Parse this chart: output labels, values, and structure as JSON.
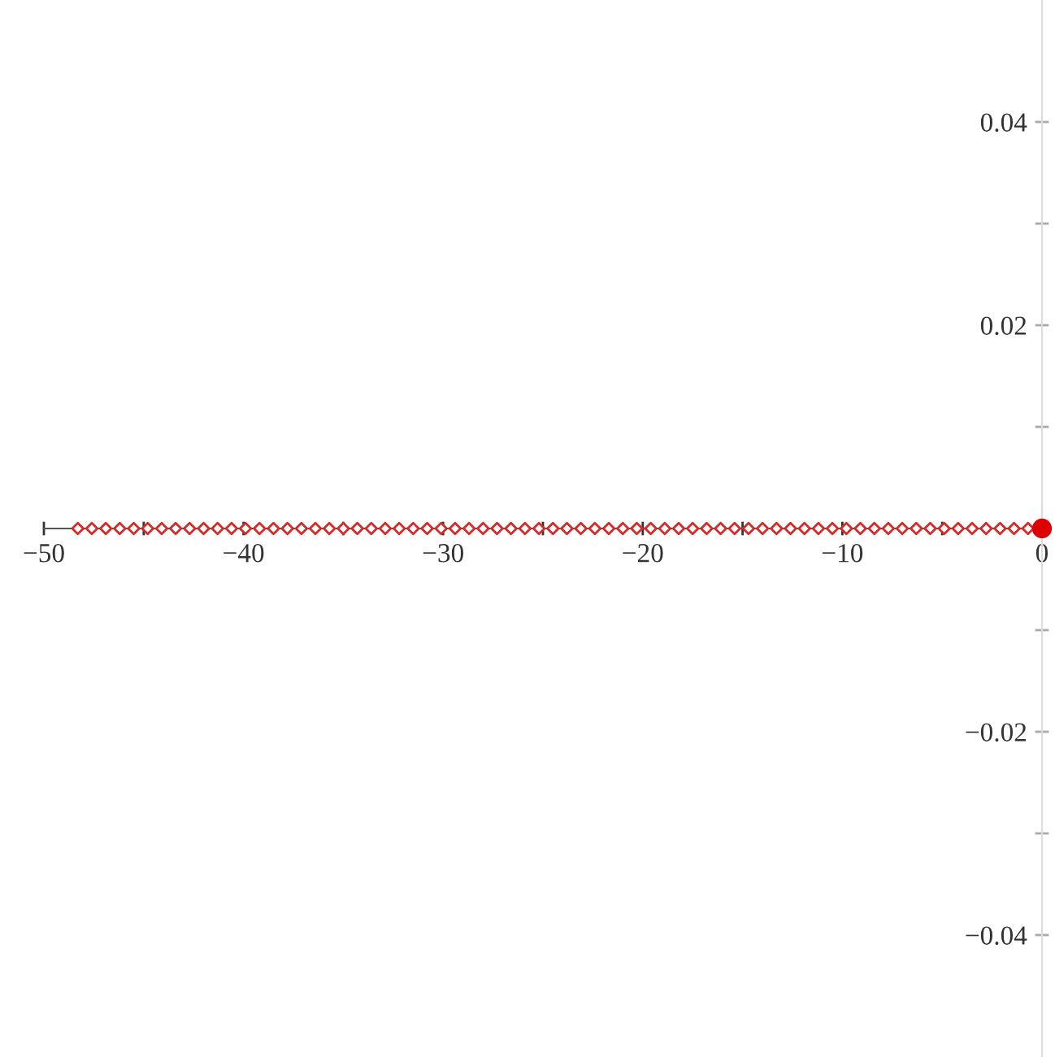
{
  "chart_data": {
    "type": "scatter",
    "xlim": [
      -50,
      0
    ],
    "ylim": [
      -0.052,
      0.052
    ],
    "xticks": [
      {
        "value": -50,
        "label": "−50"
      },
      {
        "value": -45,
        "label": null
      },
      {
        "value": -40,
        "label": "−40"
      },
      {
        "value": -35,
        "label": null
      },
      {
        "value": -30,
        "label": "−30"
      },
      {
        "value": -25,
        "label": null
      },
      {
        "value": -20,
        "label": "−20"
      },
      {
        "value": -15,
        "label": null
      },
      {
        "value": -10,
        "label": "−10"
      },
      {
        "value": -5,
        "label": null
      },
      0
    ],
    "yticks": [
      {
        "value": -0.04,
        "label": "−0.04"
      },
      {
        "value": -0.03,
        "label": null
      },
      {
        "value": -0.02,
        "label": "−0.02"
      },
      {
        "value": -0.01,
        "label": null
      },
      {
        "value": 0.01,
        "label": null
      },
      0.02,
      {
        "value": 0.03,
        "label": null
      },
      0.04
    ],
    "series": [
      {
        "color": "#d42a2a",
        "marker": "diamond",
        "x": [
          -48.3,
          -47.6,
          -46.9,
          -46.2,
          -45.5,
          -44.8,
          -44.1,
          -43.4,
          -42.7,
          -42.0,
          -41.3,
          -40.6,
          -39.9,
          -39.2,
          -38.5,
          -37.8,
          -37.1,
          -36.4,
          -35.7,
          -35.0,
          -34.3,
          -33.6,
          -32.9,
          -32.2,
          -31.5,
          -30.8,
          -30.1,
          -29.4,
          -28.7,
          -28.0,
          -27.3,
          -26.6,
          -25.9,
          -25.2,
          -24.5,
          -23.8,
          -23.1,
          -22.4,
          -21.7,
          -21.0,
          -20.3,
          -19.6,
          -18.9,
          -18.2,
          -17.5,
          -16.8,
          -16.1,
          -15.4,
          -14.7,
          -14.0,
          -13.3,
          -12.6,
          -11.9,
          -11.2,
          -10.5,
          -9.8,
          -9.1,
          -8.4,
          -7.7,
          -7.0,
          -6.3,
          -5.6,
          -4.9,
          -4.2,
          -3.5,
          -2.8,
          -2.1,
          -1.4,
          -0.7
        ],
        "values": [
          0,
          0,
          0,
          0,
          0,
          0,
          0,
          0,
          0,
          0,
          0,
          0,
          0,
          0,
          0,
          0,
          0,
          0,
          0,
          0,
          0,
          0,
          0,
          0,
          0,
          0,
          0,
          0,
          0,
          0,
          0,
          0,
          0,
          0,
          0,
          0,
          0,
          0,
          0,
          0,
          0,
          0,
          0,
          0,
          0,
          0,
          0,
          0,
          0,
          0,
          0,
          0,
          0,
          0,
          0,
          0,
          0,
          0,
          0,
          0,
          0,
          0,
          0,
          0,
          0,
          0,
          0,
          0,
          0
        ]
      },
      {
        "color": "#dd0000",
        "marker": "circle",
        "x": [
          0
        ],
        "values": [
          0
        ]
      }
    ]
  }
}
